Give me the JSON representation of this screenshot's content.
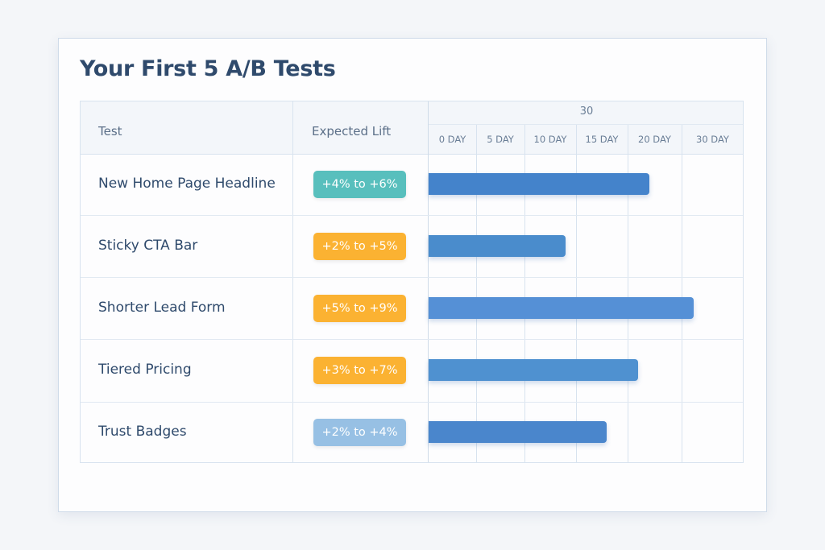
{
  "title": "Your First 5 A/B Tests",
  "columns": {
    "test": "Test",
    "lift": "Expected Lift"
  },
  "chart_data": {
    "type": "bar",
    "orientation": "horizontal",
    "span_label": "30",
    "ticks": [
      "0 DAY",
      "5 DAY",
      "10 DAY",
      "15 DAY",
      "20 DAY",
      "30 DAY"
    ],
    "xlim": [
      0,
      30
    ],
    "unit": "days",
    "grid": true,
    "categories": [
      "New Home Page Headline",
      "Sticky CTA Bar",
      "Shorter Lead Form",
      "Tiered Pricing",
      "Trust Badges"
    ],
    "values": [
      22,
      14,
      26,
      21,
      18
    ],
    "bar_colors": [
      "#4483cb",
      "#4a8ccc",
      "#5590d6",
      "#4f91d0",
      "#4a86cc"
    ]
  },
  "rows": [
    {
      "name": "New Home Page Headline",
      "lift": "+4% to +6%",
      "badge_color": "#58bfbd"
    },
    {
      "name": "Sticky CTA Bar",
      "lift": "+2% to +5%",
      "badge_color": "#fbb232"
    },
    {
      "name": "Shorter Lead Form",
      "lift": "+5% to +9%",
      "badge_color": "#fbb232"
    },
    {
      "name": "Tiered Pricing",
      "lift": "+3% to +7%",
      "badge_color": "#fbb232"
    },
    {
      "name": "Trust Badges",
      "lift": "+2% to +4%",
      "badge_color": "#97c0e4"
    }
  ]
}
